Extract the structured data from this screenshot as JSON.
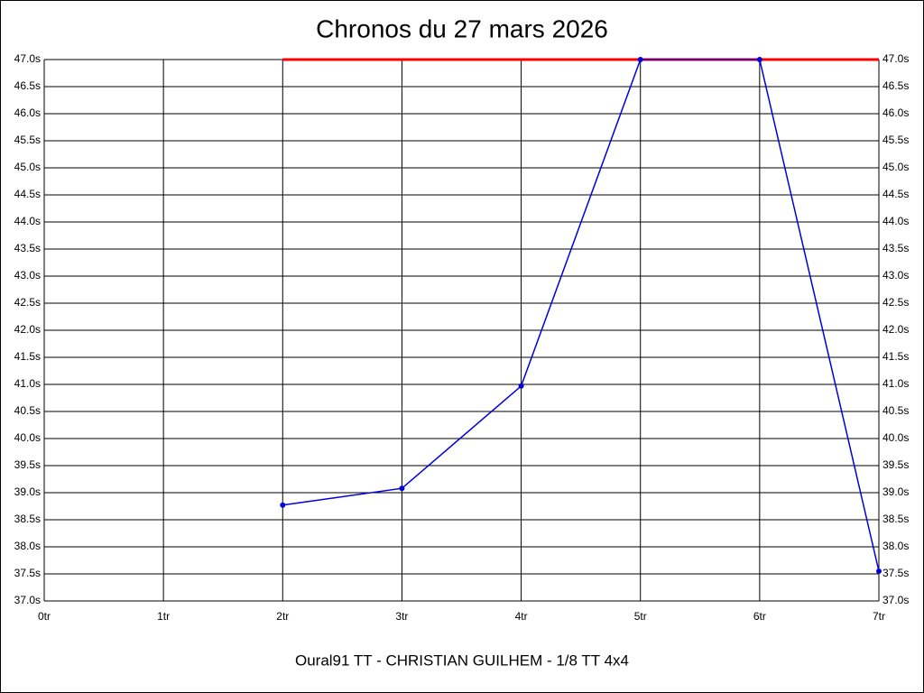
{
  "chart_data": {
    "type": "line",
    "title": "Chronos du 27 mars 2026",
    "xlabel": "Oural91 TT - CHRISTIAN GUILHEM - 1/8 TT 4x4",
    "categories": [
      "0tr",
      "1tr",
      "2tr",
      "3tr",
      "4tr",
      "5tr",
      "6tr",
      "7tr"
    ],
    "series": [
      {
        "color": "#0000dd",
        "values": [
          null,
          null,
          38.77,
          39.08,
          40.97,
          47.0,
          47.0,
          37.55
        ]
      }
    ],
    "limit_line": {
      "color": "#ff0000",
      "values": [
        null,
        null,
        47.0,
        47.0,
        47.0,
        47.0,
        47.0,
        47.0
      ]
    },
    "ylim": [
      37.0,
      47.0
    ],
    "yticks": [
      {
        "value": 37.0,
        "label": "37.0s"
      },
      {
        "value": 37.5,
        "label": "37.5s"
      },
      {
        "value": 38.0,
        "label": "38.0s"
      },
      {
        "value": 38.5,
        "label": "38.5s"
      },
      {
        "value": 39.0,
        "label": "39.0s"
      },
      {
        "value": 39.5,
        "label": "39.5s"
      },
      {
        "value": 40.0,
        "label": "40.0s"
      },
      {
        "value": 40.5,
        "label": "40.5s"
      },
      {
        "value": 41.0,
        "label": "41.0s"
      },
      {
        "value": 41.5,
        "label": "41.5s"
      },
      {
        "value": 42.0,
        "label": "42.0s"
      },
      {
        "value": 42.5,
        "label": "42.5s"
      },
      {
        "value": 43.0,
        "label": "43.0s"
      },
      {
        "value": 43.5,
        "label": "43.5s"
      },
      {
        "value": 44.0,
        "label": "44.0s"
      },
      {
        "value": 44.5,
        "label": "44.5s"
      },
      {
        "value": 45.0,
        "label": "45.0s"
      },
      {
        "value": 45.5,
        "label": "45.5s"
      },
      {
        "value": 46.0,
        "label": "46.0s"
      },
      {
        "value": 46.5,
        "label": "46.5s"
      },
      {
        "value": 47.0,
        "label": "47.0s"
      }
    ],
    "grid": true
  }
}
